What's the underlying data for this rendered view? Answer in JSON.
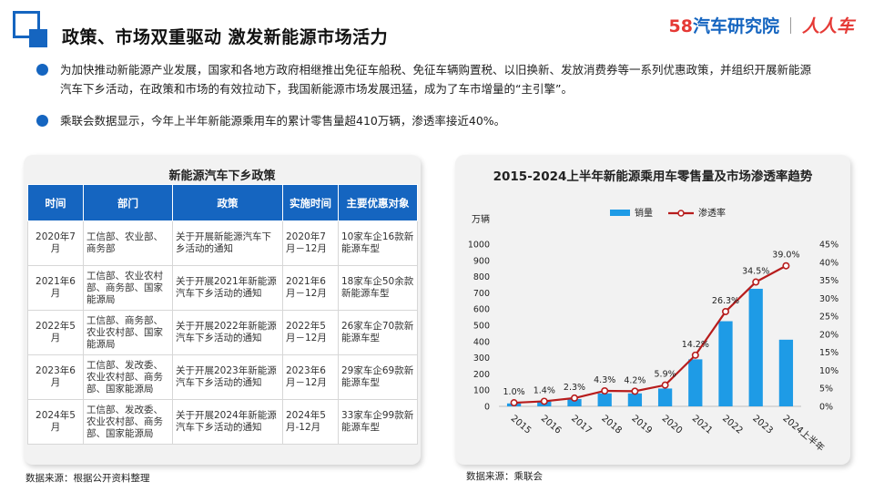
{
  "header": {
    "title": "政策、市场双重驱动 激发新能源市场活力",
    "brand_58": "58",
    "brand_58_name": "汽车研究院",
    "brand_rrc": "人人车"
  },
  "bullets": [
    "为加快推动新能源产业发展，国家和各地方政府相继推出免征车船税、免征车辆购置税、以旧换新、发放消费券等一系列优惠政策，并组织开展新能源汽车下乡活动，在政策和市场的有效拉动下，我国新能源市场发展迅猛，成为了车市增量的“主引擎”。",
    "乘联会数据显示，今年上半年新能源乘用车的累计零售量超410万辆，渗透率接近40%。"
  ],
  "policy_table": {
    "title": "新能源汽车下乡政策",
    "headers": [
      "时间",
      "部门",
      "政策",
      "实施时间",
      "主要优惠对象"
    ],
    "rows": [
      [
        "2020年7月",
        "工信部、农业部、商务部",
        "关于开展新能源汽车下乡活动的通知",
        "2020年7月－12月",
        "10家车企16款新能源车型"
      ],
      [
        "2021年6月",
        "工信部、农业农村部、商务部、国家能源局",
        "关于开展2021年新能源汽车下乡活动的通知",
        "2021年6月－12月",
        "18家车企50余款新能源车型"
      ],
      [
        "2022年5月",
        "工信部、商务部、农业农村部、国家能源局",
        "关于开展2022年新能源汽车下乡活动的通知",
        "2022年5月－12月",
        "26家车企70款新能源车型"
      ],
      [
        "2023年6月",
        "工信部、发改委、农业农村部、商务部、国家能源局",
        "关于开展2023年新能源汽车下乡活动的通知",
        "2023年6月－12月",
        "29家车企69款新能源车型"
      ],
      [
        "2024年5月",
        "工信部、发改委、农业农村部、商务部、国家能源局",
        "关于开展2024年新能源汽车下乡活动的通知",
        "2024年5月-12月",
        "33家车企99款新能源车型"
      ]
    ],
    "source": "数据来源：根据公开资料整理"
  },
  "chart_source": "数据来源：乘联会",
  "colors": {
    "primary_blue": "#1565c0",
    "bar_blue": "#1e9be6",
    "line_red": "#b71c1c",
    "brand_red": "#e53935"
  },
  "chart_data": {
    "type": "bar+line",
    "title": "2015-2024上半年新能源乘用车零售量及市场渗透率趋势",
    "ylabel": "万辆",
    "categories": [
      "2015",
      "2016",
      "2017",
      "2018",
      "2019",
      "2020",
      "2021",
      "2022",
      "2023",
      "2024上半年"
    ],
    "series": [
      {
        "name": "销量",
        "type": "bar",
        "axis": "left",
        "values": [
          18,
          30,
          45,
          80,
          80,
          110,
          290,
          525,
          725,
          411
        ]
      },
      {
        "name": "渗透率",
        "type": "line",
        "axis": "right",
        "values": [
          1.0,
          1.4,
          2.3,
          4.3,
          4.2,
          5.9,
          14.2,
          26.3,
          34.5,
          39.0
        ],
        "labels": [
          "1.0%",
          "1.4%",
          "2.3%",
          "4.3%",
          "4.2%",
          "5.9%",
          "14.2%",
          "26.3%",
          "34.5%",
          "39.0%"
        ]
      }
    ],
    "ylim": [
      0,
      1000
    ],
    "yticks": [
      "0",
      "100",
      "200",
      "300",
      "400",
      "500",
      "600",
      "700",
      "800",
      "900",
      "1000"
    ],
    "y2lim": [
      0,
      45
    ],
    "y2ticks": [
      "0%",
      "5%",
      "10%",
      "15%",
      "20%",
      "25%",
      "30%",
      "35%",
      "40%",
      "45%"
    ],
    "legend": "top",
    "grid": false
  }
}
